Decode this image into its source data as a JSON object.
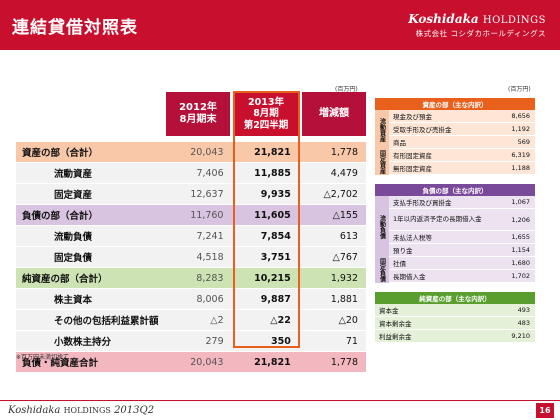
{
  "header": {
    "title": "連結貸借対照表",
    "brand": "Koshidaka",
    "brand_suffix": "HOLDINGS",
    "company": "株式会社 コシダカホールディングス"
  },
  "unit_label": "(百万円)",
  "note": "※百万円未満切捨て",
  "columns": {
    "prev": [
      "2012年",
      "8月期末"
    ],
    "curr": [
      "2013年",
      "8月期",
      "第2四半期"
    ],
    "diff": "増減額"
  },
  "rows": [
    {
      "label": "資産の部（合計）",
      "prev": "20,043",
      "curr": "21,821",
      "diff": "1,778",
      "type": "major",
      "color": "orange"
    },
    {
      "label": "流動資産",
      "prev": "7,406",
      "curr": "11,885",
      "diff": "4,479",
      "type": "sub"
    },
    {
      "label": "固定資産",
      "prev": "12,637",
      "curr": "9,935",
      "diff": "△2,702",
      "type": "sub"
    },
    {
      "label": "負債の部（合計）",
      "prev": "11,760",
      "curr": "11,605",
      "diff": "△155",
      "type": "major",
      "color": "purple"
    },
    {
      "label": "流動負債",
      "prev": "7,241",
      "curr": "7,854",
      "diff": "613",
      "type": "sub"
    },
    {
      "label": "固定負債",
      "prev": "4,518",
      "curr": "3,751",
      "diff": "△767",
      "type": "sub"
    },
    {
      "label": "純資産の部（合計）",
      "prev": "8,283",
      "curr": "10,215",
      "diff": "1,932",
      "type": "major",
      "color": "green"
    },
    {
      "label": "株主資本",
      "prev": "8,006",
      "curr": "9,887",
      "diff": "1,881",
      "type": "sub"
    },
    {
      "label": "その他の包括利益累計額",
      "prev": "△2",
      "curr": "△22",
      "diff": "△20",
      "type": "sub"
    },
    {
      "label": "小数株主持分",
      "prev": "279",
      "curr": "350",
      "diff": "71",
      "type": "sub"
    },
    {
      "label": "負債・純資産合計",
      "prev": "20,043",
      "curr": "21,821",
      "diff": "1,778",
      "type": "major",
      "color": "pink"
    }
  ],
  "assets_detail": {
    "title": "資産の部（主な内訳）",
    "groups": [
      {
        "side": "流動資産",
        "items": [
          {
            "name": "現金及び預金",
            "value": "8,656"
          },
          {
            "name": "受取手形及び売掛金",
            "value": "1,192"
          },
          {
            "name": "商品",
            "value": "569"
          }
        ]
      },
      {
        "side": "固定資産",
        "items": [
          {
            "name": "有形固定資産",
            "value": "6,319"
          },
          {
            "name": "無形固定資産",
            "value": "1,188"
          }
        ]
      }
    ]
  },
  "liabilities_detail": {
    "title": "負債の部（主な内訳）",
    "groups": [
      {
        "side": "流動負債",
        "items": [
          {
            "name": "支払手形及び買掛金",
            "value": "1,067"
          },
          {
            "name": "1年以内返済予定の長期借入金",
            "value": "1,206"
          },
          {
            "name": "未払法人税等",
            "value": "1,655"
          },
          {
            "name": "預り金",
            "value": "1,154"
          }
        ]
      },
      {
        "side": "固定負債",
        "items": [
          {
            "name": "社債",
            "value": "1,680"
          },
          {
            "name": "長期借入金",
            "value": "1,702"
          }
        ]
      }
    ]
  },
  "equity_detail": {
    "title": "純資産の部（主な内訳）",
    "items": [
      {
        "name": "資本金",
        "value": "493"
      },
      {
        "name": "資本剰余金",
        "value": "483"
      },
      {
        "name": "利益剰余金",
        "value": "9,210"
      }
    ]
  },
  "footer": {
    "brand": "Koshidaka",
    "suffix": "HOLDINGS",
    "period": "2013Q2",
    "page": "16"
  }
}
